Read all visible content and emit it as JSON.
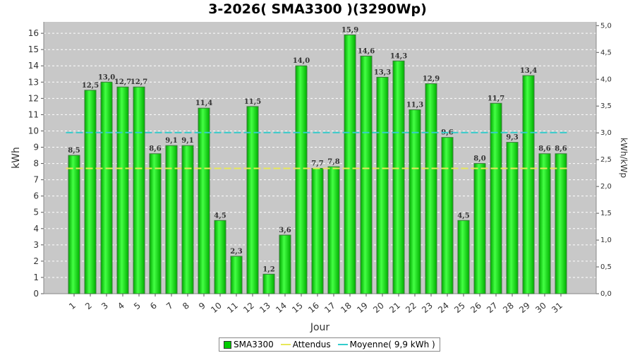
{
  "chart_data": {
    "type": "bar",
    "title": "3-2026( SMA3300 )(3290Wp)",
    "xlabel": "Jour",
    "ylabel": "kWh",
    "y2label": "kWh/kWp",
    "categories": [
      "1",
      "2",
      "3",
      "4",
      "5",
      "6",
      "7",
      "8",
      "9",
      "10",
      "11",
      "12",
      "13",
      "14",
      "15",
      "16",
      "17",
      "18",
      "19",
      "20",
      "21",
      "22",
      "23",
      "24",
      "25",
      "26",
      "27",
      "28",
      "29",
      "30",
      "31"
    ],
    "series": [
      {
        "name": "SMA3300",
        "values": [
          8.5,
          12.5,
          13.0,
          12.7,
          12.7,
          8.6,
          9.1,
          9.1,
          11.4,
          4.5,
          2.3,
          11.5,
          1.2,
          3.6,
          14.0,
          7.7,
          7.8,
          15.9,
          14.6,
          13.3,
          14.3,
          11.3,
          12.9,
          9.6,
          4.5,
          8.0,
          11.7,
          9.3,
          13.4,
          8.6,
          8.6
        ],
        "labels": [
          "8,5",
          "12,5",
          "13,0",
          "12,7",
          "12,7",
          "8,6",
          "9,1",
          "9,1",
          "11,4",
          "4,5",
          "2,3",
          "11,5",
          "1,2",
          "3,6",
          "14,0",
          "7,7",
          "7,8",
          "15,9",
          "14,6",
          "13,3",
          "14,3",
          "11,3",
          "12,9",
          "9,6",
          "4,5",
          "8,0",
          "11,7",
          "9,3",
          "13,4",
          "8,6",
          "8,6"
        ]
      }
    ],
    "attendus": 7.7,
    "moyenne": 9.9,
    "ylim": [
      0,
      16.7
    ],
    "yticks": [
      "0",
      "1",
      "2",
      "3",
      "4",
      "5",
      "6",
      "7",
      "8",
      "9",
      "10",
      "11",
      "12",
      "13",
      "14",
      "15",
      "16"
    ],
    "y2lim": [
      0,
      5.07
    ],
    "y2ticks": [
      "0,0",
      "0,5",
      "1,0",
      "1,5",
      "2,0",
      "2,5",
      "3,0",
      "3,5",
      "4,0",
      "4,5",
      "5,0"
    ],
    "grid": true,
    "legend_position": "bottom",
    "legend": [
      "SMA3300",
      "Attendus",
      "Moyenne( 9,9 kWh )"
    ],
    "colors": {
      "bar": "#00cc00",
      "bar_border": "#3a7a3a",
      "attendus": "#e8e85a",
      "moyenne": "#33cccc",
      "plot_bg": "#c8c8c8",
      "grid": "#ffffff"
    }
  }
}
